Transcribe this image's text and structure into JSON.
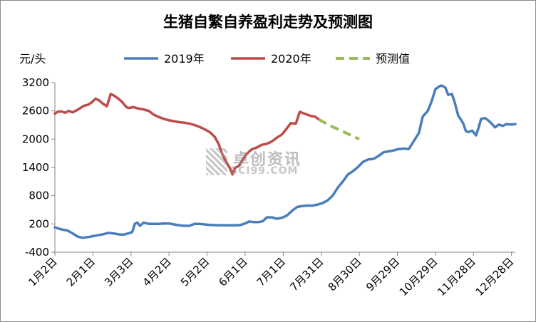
{
  "chart_data": {
    "type": "line",
    "title": "生猪自繁自养盈利走势及预测图",
    "ylabel": "元/头",
    "ylim": [
      -400,
      3200
    ],
    "yticks": [
      -400,
      200,
      800,
      1400,
      2000,
      2600,
      3200
    ],
    "x_domain": [
      "01-02",
      "12-31"
    ],
    "xticks": [
      "1月2日",
      "2月1日",
      "3月3日",
      "4月2日",
      "5月2日",
      "6月1日",
      "7月1日",
      "7月31日",
      "8月30日",
      "9月29日",
      "10月29日",
      "11月28日",
      "12月28日"
    ],
    "legend_position": "top",
    "series": [
      {
        "name": "2019年",
        "color": "#4a7ebb",
        "dashed": false,
        "points": [
          [
            "01-02",
            130
          ],
          [
            "01-05",
            100
          ],
          [
            "01-08",
            80
          ],
          [
            "01-12",
            60
          ],
          [
            "01-16",
            0
          ],
          [
            "01-20",
            -70
          ],
          [
            "01-24",
            -95
          ],
          [
            "01-28",
            -80
          ],
          [
            "02-01",
            -60
          ],
          [
            "02-05",
            -40
          ],
          [
            "02-09",
            -20
          ],
          [
            "02-13",
            10
          ],
          [
            "02-17",
            0
          ],
          [
            "02-21",
            -20
          ],
          [
            "02-25",
            -30
          ],
          [
            "03-01",
            0
          ],
          [
            "03-04",
            30
          ],
          [
            "03-06",
            200
          ],
          [
            "03-08",
            230
          ],
          [
            "03-10",
            160
          ],
          [
            "03-13",
            230
          ],
          [
            "03-17",
            200
          ],
          [
            "03-21",
            200
          ],
          [
            "03-25",
            200
          ],
          [
            "03-29",
            210
          ],
          [
            "04-02",
            210
          ],
          [
            "04-06",
            190
          ],
          [
            "04-10",
            170
          ],
          [
            "04-14",
            160
          ],
          [
            "04-18",
            160
          ],
          [
            "04-22",
            200
          ],
          [
            "04-26",
            200
          ],
          [
            "04-30",
            190
          ],
          [
            "05-04",
            180
          ],
          [
            "05-08",
            175
          ],
          [
            "05-12",
            170
          ],
          [
            "05-16",
            170
          ],
          [
            "05-20",
            170
          ],
          [
            "05-24",
            170
          ],
          [
            "05-28",
            175
          ],
          [
            "06-01",
            210
          ],
          [
            "06-04",
            250
          ],
          [
            "06-08",
            240
          ],
          [
            "06-12",
            240
          ],
          [
            "06-15",
            260
          ],
          [
            "06-18",
            340
          ],
          [
            "06-22",
            340
          ],
          [
            "06-26",
            310
          ],
          [
            "06-30",
            330
          ],
          [
            "07-04",
            380
          ],
          [
            "07-08",
            480
          ],
          [
            "07-12",
            560
          ],
          [
            "07-16",
            580
          ],
          [
            "07-20",
            590
          ],
          [
            "07-24",
            590
          ],
          [
            "07-28",
            610
          ],
          [
            "08-01",
            640
          ],
          [
            "08-05",
            700
          ],
          [
            "08-09",
            800
          ],
          [
            "08-13",
            970
          ],
          [
            "08-17",
            1100
          ],
          [
            "08-21",
            1250
          ],
          [
            "08-25",
            1320
          ],
          [
            "08-29",
            1410
          ],
          [
            "09-02",
            1520
          ],
          [
            "09-06",
            1570
          ],
          [
            "09-10",
            1580
          ],
          [
            "09-14",
            1640
          ],
          [
            "09-18",
            1720
          ],
          [
            "09-22",
            1740
          ],
          [
            "09-26",
            1760
          ],
          [
            "09-30",
            1790
          ],
          [
            "10-04",
            1800
          ],
          [
            "10-08",
            1790
          ],
          [
            "10-12",
            1960
          ],
          [
            "10-16",
            2130
          ],
          [
            "10-19",
            2480
          ],
          [
            "10-23",
            2600
          ],
          [
            "10-26",
            2800
          ],
          [
            "10-29",
            3060
          ],
          [
            "11-01",
            3120
          ],
          [
            "11-03",
            3140
          ],
          [
            "11-06",
            3090
          ],
          [
            "11-08",
            2940
          ],
          [
            "11-11",
            2960
          ],
          [
            "11-13",
            2800
          ],
          [
            "11-16",
            2500
          ],
          [
            "11-18",
            2420
          ],
          [
            "11-20",
            2330
          ],
          [
            "11-22",
            2170
          ],
          [
            "11-24",
            2150
          ],
          [
            "11-27",
            2180
          ],
          [
            "11-30",
            2080
          ],
          [
            "12-02",
            2240
          ],
          [
            "12-04",
            2430
          ],
          [
            "12-07",
            2450
          ],
          [
            "12-10",
            2390
          ],
          [
            "12-13",
            2310
          ],
          [
            "12-15",
            2250
          ],
          [
            "12-18",
            2310
          ],
          [
            "12-21",
            2280
          ],
          [
            "12-24",
            2320
          ],
          [
            "12-28",
            2310
          ],
          [
            "12-31",
            2320
          ]
        ]
      },
      {
        "name": "2020年",
        "color": "#be4b48",
        "dashed": false,
        "points": [
          [
            "01-02",
            2540
          ],
          [
            "01-04",
            2580
          ],
          [
            "01-07",
            2590
          ],
          [
            "01-10",
            2560
          ],
          [
            "01-13",
            2600
          ],
          [
            "01-16",
            2570
          ],
          [
            "01-19",
            2610
          ],
          [
            "01-22",
            2660
          ],
          [
            "01-25",
            2710
          ],
          [
            "01-28",
            2730
          ],
          [
            "01-31",
            2780
          ],
          [
            "02-03",
            2860
          ],
          [
            "02-06",
            2820
          ],
          [
            "02-09",
            2750
          ],
          [
            "02-12",
            2700
          ],
          [
            "02-15",
            2960
          ],
          [
            "02-18",
            2920
          ],
          [
            "02-21",
            2860
          ],
          [
            "02-24",
            2790
          ],
          [
            "02-27",
            2690
          ],
          [
            "03-01",
            2660
          ],
          [
            "03-05",
            2680
          ],
          [
            "03-09",
            2650
          ],
          [
            "03-13",
            2630
          ],
          [
            "03-17",
            2600
          ],
          [
            "03-21",
            2520
          ],
          [
            "03-25",
            2470
          ],
          [
            "03-29",
            2430
          ],
          [
            "04-02",
            2400
          ],
          [
            "04-06",
            2380
          ],
          [
            "04-10",
            2360
          ],
          [
            "04-14",
            2350
          ],
          [
            "04-18",
            2330
          ],
          [
            "04-22",
            2300
          ],
          [
            "04-26",
            2260
          ],
          [
            "04-30",
            2210
          ],
          [
            "05-04",
            2150
          ],
          [
            "05-08",
            2050
          ],
          [
            "05-11",
            1900
          ],
          [
            "05-14",
            1680
          ],
          [
            "05-17",
            1520
          ],
          [
            "05-20",
            1380
          ],
          [
            "05-22",
            1250
          ],
          [
            "05-24",
            1390
          ],
          [
            "05-27",
            1430
          ],
          [
            "05-30",
            1560
          ],
          [
            "06-02",
            1680
          ],
          [
            "06-06",
            1780
          ],
          [
            "06-10",
            1820
          ],
          [
            "06-14",
            1880
          ],
          [
            "06-18",
            1900
          ],
          [
            "06-22",
            1950
          ],
          [
            "06-26",
            2030
          ],
          [
            "06-30",
            2100
          ],
          [
            "07-03",
            2200
          ],
          [
            "07-07",
            2340
          ],
          [
            "07-11",
            2330
          ],
          [
            "07-14",
            2580
          ],
          [
            "07-17",
            2550
          ],
          [
            "07-20",
            2520
          ],
          [
            "07-23",
            2490
          ],
          [
            "07-26",
            2480
          ],
          [
            "07-29",
            2420
          ]
        ]
      },
      {
        "name": "预测值",
        "color": "#9bbb59",
        "dashed": true,
        "points": [
          [
            "07-29",
            2420
          ],
          [
            "08-06",
            2300
          ],
          [
            "08-14",
            2200
          ],
          [
            "08-22",
            2100
          ],
          [
            "08-30",
            2000
          ]
        ]
      }
    ]
  },
  "watermark": {
    "text_zh": "卓创资讯",
    "text_en": "SCI99.COM"
  }
}
